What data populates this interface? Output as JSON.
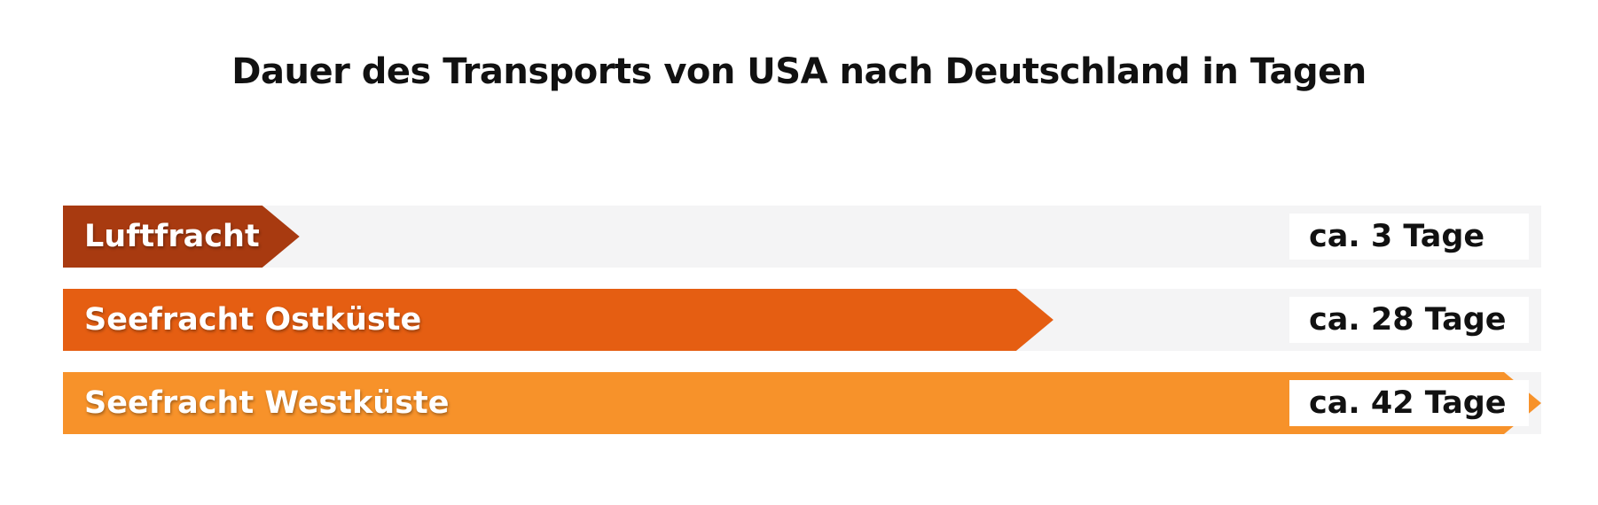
{
  "chart_data": {
    "type": "bar",
    "title": "Dauer des Transports von USA nach Deutschland in Tagen",
    "categories": [
      "Luftfracht",
      "Seefracht Ostküste",
      "Seefracht Westküste"
    ],
    "values": [
      3,
      28,
      42
    ],
    "value_labels": [
      "ca. 3 Tage",
      "ca. 28 Tage",
      "ca. 42 Tage"
    ],
    "fill_fraction": [
      0.16,
      0.67,
      1.0
    ],
    "colors": [
      "#a83a10",
      "#e55e12",
      "#f7922a"
    ],
    "track_color": "#f4f4f5"
  }
}
